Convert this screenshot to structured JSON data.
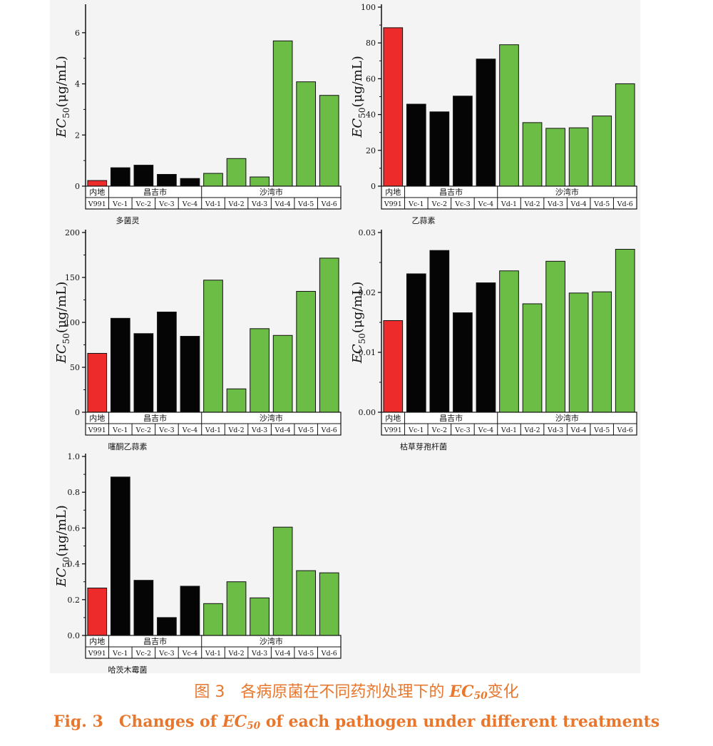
{
  "colors": {
    "inland": "#ee2b2b",
    "changji": "#050505",
    "shawan": "#6cbd45",
    "axis": "#111111"
  },
  "ylabel_parts": {
    "ec": "EC",
    "sub": "50",
    "unit": "(μg/mL)"
  },
  "chart_data": [
    {
      "type": "bar",
      "title": "多菌灵",
      "categories": [
        "V991",
        "Vc-1",
        "Vc-2",
        "Vc-3",
        "Vc-4",
        "Vd-1",
        "Vd-2",
        "Vd-3",
        "Vd-4",
        "Vd-5",
        "Vd-6"
      ],
      "values": [
        0.22,
        0.72,
        0.82,
        0.46,
        0.3,
        0.5,
        1.08,
        0.36,
        5.68,
        4.08,
        3.55
      ],
      "groups": [
        {
          "label": "内地",
          "start": 0,
          "end": 0,
          "color": "inland"
        },
        {
          "label": "昌吉市",
          "start": 1,
          "end": 4,
          "color": "changji"
        },
        {
          "label": "沙湾市",
          "start": 5,
          "end": 10,
          "color": "shawan"
        }
      ],
      "ylim": [
        0,
        7.0
      ],
      "yticks": [
        0,
        2,
        4,
        6
      ],
      "tick_labels": [
        "0",
        "2",
        "4",
        "6"
      ]
    },
    {
      "type": "bar",
      "title": "乙蒜素",
      "categories": [
        "V991",
        "Vc-1",
        "Vc-2",
        "Vc-3",
        "Vc-4",
        "Vd-1",
        "Vd-2",
        "Vd-3",
        "Vd-4",
        "Vd-5",
        "Vd-6"
      ],
      "values": [
        88.5,
        45.8,
        41.5,
        50.3,
        71.0,
        79.0,
        35.5,
        32.3,
        32.6,
        39.2,
        57.2
      ],
      "groups": [
        {
          "label": "内地",
          "start": 0,
          "end": 0,
          "color": "inland"
        },
        {
          "label": "昌吉市",
          "start": 1,
          "end": 4,
          "color": "changji"
        },
        {
          "label": "沙湾市",
          "start": 5,
          "end": 10,
          "color": "shawan"
        }
      ],
      "ylim": [
        0,
        100
      ],
      "yticks": [
        0,
        20,
        40,
        60,
        80,
        100
      ],
      "tick_labels": [
        "0",
        "20",
        "40",
        "60",
        "80",
        "100"
      ]
    },
    {
      "type": "bar",
      "title": "噻酮乙蒜素",
      "categories": [
        "V991",
        "Vc-1",
        "Vc-2",
        "Vc-3",
        "Vc-4",
        "Vd-1",
        "Vd-2",
        "Vd-3",
        "Vd-4",
        "Vd-5",
        "Vd-6"
      ],
      "values": [
        65.5,
        104.5,
        87.5,
        111.5,
        84.5,
        147.0,
        26.0,
        93.0,
        85.5,
        134.5,
        171.5
      ],
      "groups": [
        {
          "label": "内地",
          "start": 0,
          "end": 0,
          "color": "inland"
        },
        {
          "label": "昌吉市",
          "start": 1,
          "end": 4,
          "color": "changji"
        },
        {
          "label": "沙湾市",
          "start": 5,
          "end": 10,
          "color": "shawan"
        }
      ],
      "ylim": [
        0,
        200
      ],
      "yticks": [
        0,
        50,
        100,
        150,
        200
      ],
      "tick_labels": [
        "0",
        "50",
        "100",
        "150",
        "200"
      ]
    },
    {
      "type": "bar",
      "title": "枯草芽孢杆菌",
      "categories": [
        "V991",
        "Vc-1",
        "Vc-2",
        "Vc-3",
        "Vc-4",
        "Vd-1",
        "Vd-2",
        "Vd-3",
        "Vd-4",
        "Vd-5",
        "Vd-6"
      ],
      "values": [
        0.0153,
        0.0231,
        0.027,
        0.0166,
        0.0216,
        0.0236,
        0.0181,
        0.0252,
        0.0199,
        0.0201,
        0.0272
      ],
      "groups": [
        {
          "label": "内地",
          "start": 0,
          "end": 0,
          "color": "inland"
        },
        {
          "label": "昌吉市",
          "start": 1,
          "end": 4,
          "color": "changji"
        },
        {
          "label": "沙湾市",
          "start": 5,
          "end": 10,
          "color": "shawan"
        }
      ],
      "ylim": [
        0,
        0.03
      ],
      "yticks": [
        0,
        0.01,
        0.02,
        0.03
      ],
      "tick_labels": [
        "0.00",
        "0.01",
        "0.02",
        "0.03"
      ]
    },
    {
      "type": "bar",
      "title": "哈茨木霉菌",
      "categories": [
        "V991",
        "Vc-1",
        "Vc-2",
        "Vc-3",
        "Vc-4",
        "Vd-1",
        "Vd-2",
        "Vd-3",
        "Vd-4",
        "Vd-5",
        "Vd-6"
      ],
      "values": [
        0.265,
        0.885,
        0.308,
        0.1,
        0.275,
        0.178,
        0.3,
        0.21,
        0.605,
        0.362,
        0.35
      ],
      "groups": [
        {
          "label": "内地",
          "start": 0,
          "end": 0,
          "color": "inland"
        },
        {
          "label": "昌吉市",
          "start": 1,
          "end": 4,
          "color": "changji"
        },
        {
          "label": "沙湾市",
          "start": 5,
          "end": 10,
          "color": "shawan"
        }
      ],
      "ylim": [
        0,
        1.0
      ],
      "yticks": [
        0,
        0.2,
        0.4,
        0.6,
        0.8,
        1.0
      ],
      "tick_labels": [
        "0.0",
        "0.2",
        "0.4",
        "0.6",
        "0.8",
        "1.0"
      ]
    }
  ],
  "caption": {
    "cn_prefix": "图 3　各病原菌在不同药剂处理下的 ",
    "cn_ec": "EC",
    "cn_sub": "50",
    "cn_suffix": "变化",
    "en_prefix": "Fig. 3　Changes of ",
    "en_ec": "EC",
    "en_sub": "50",
    "en_suffix": " of each pathogen under different treatments"
  }
}
